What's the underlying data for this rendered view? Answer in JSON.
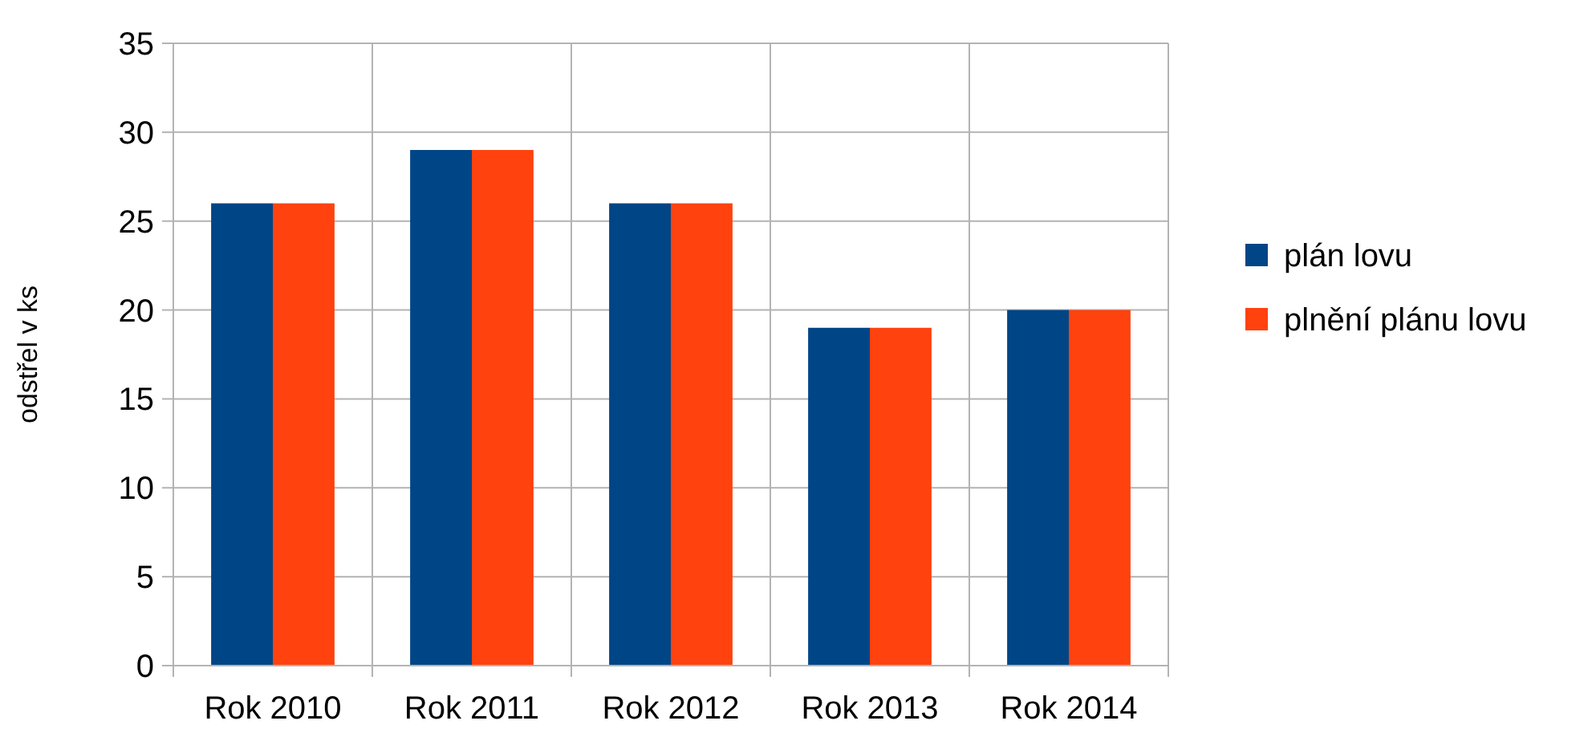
{
  "chart_data": {
    "type": "bar",
    "ylabel": "odstřel v ks",
    "categories": [
      "Rok 2010",
      "Rok 2011",
      "Rok 2012",
      "Rok 2013",
      "Rok 2014"
    ],
    "series": [
      {
        "name": "plán lovu",
        "color": "#004586",
        "values": [
          26,
          29,
          26,
          19,
          20
        ]
      },
      {
        "name": "plnění plánu lovu",
        "color": "#ff420e",
        "values": [
          26,
          29,
          26,
          19,
          20
        ]
      }
    ],
    "ylim": [
      0,
      35
    ],
    "yticks": [
      0,
      5,
      10,
      15,
      20,
      25,
      30,
      35
    ],
    "grid": true,
    "legend": "right"
  }
}
